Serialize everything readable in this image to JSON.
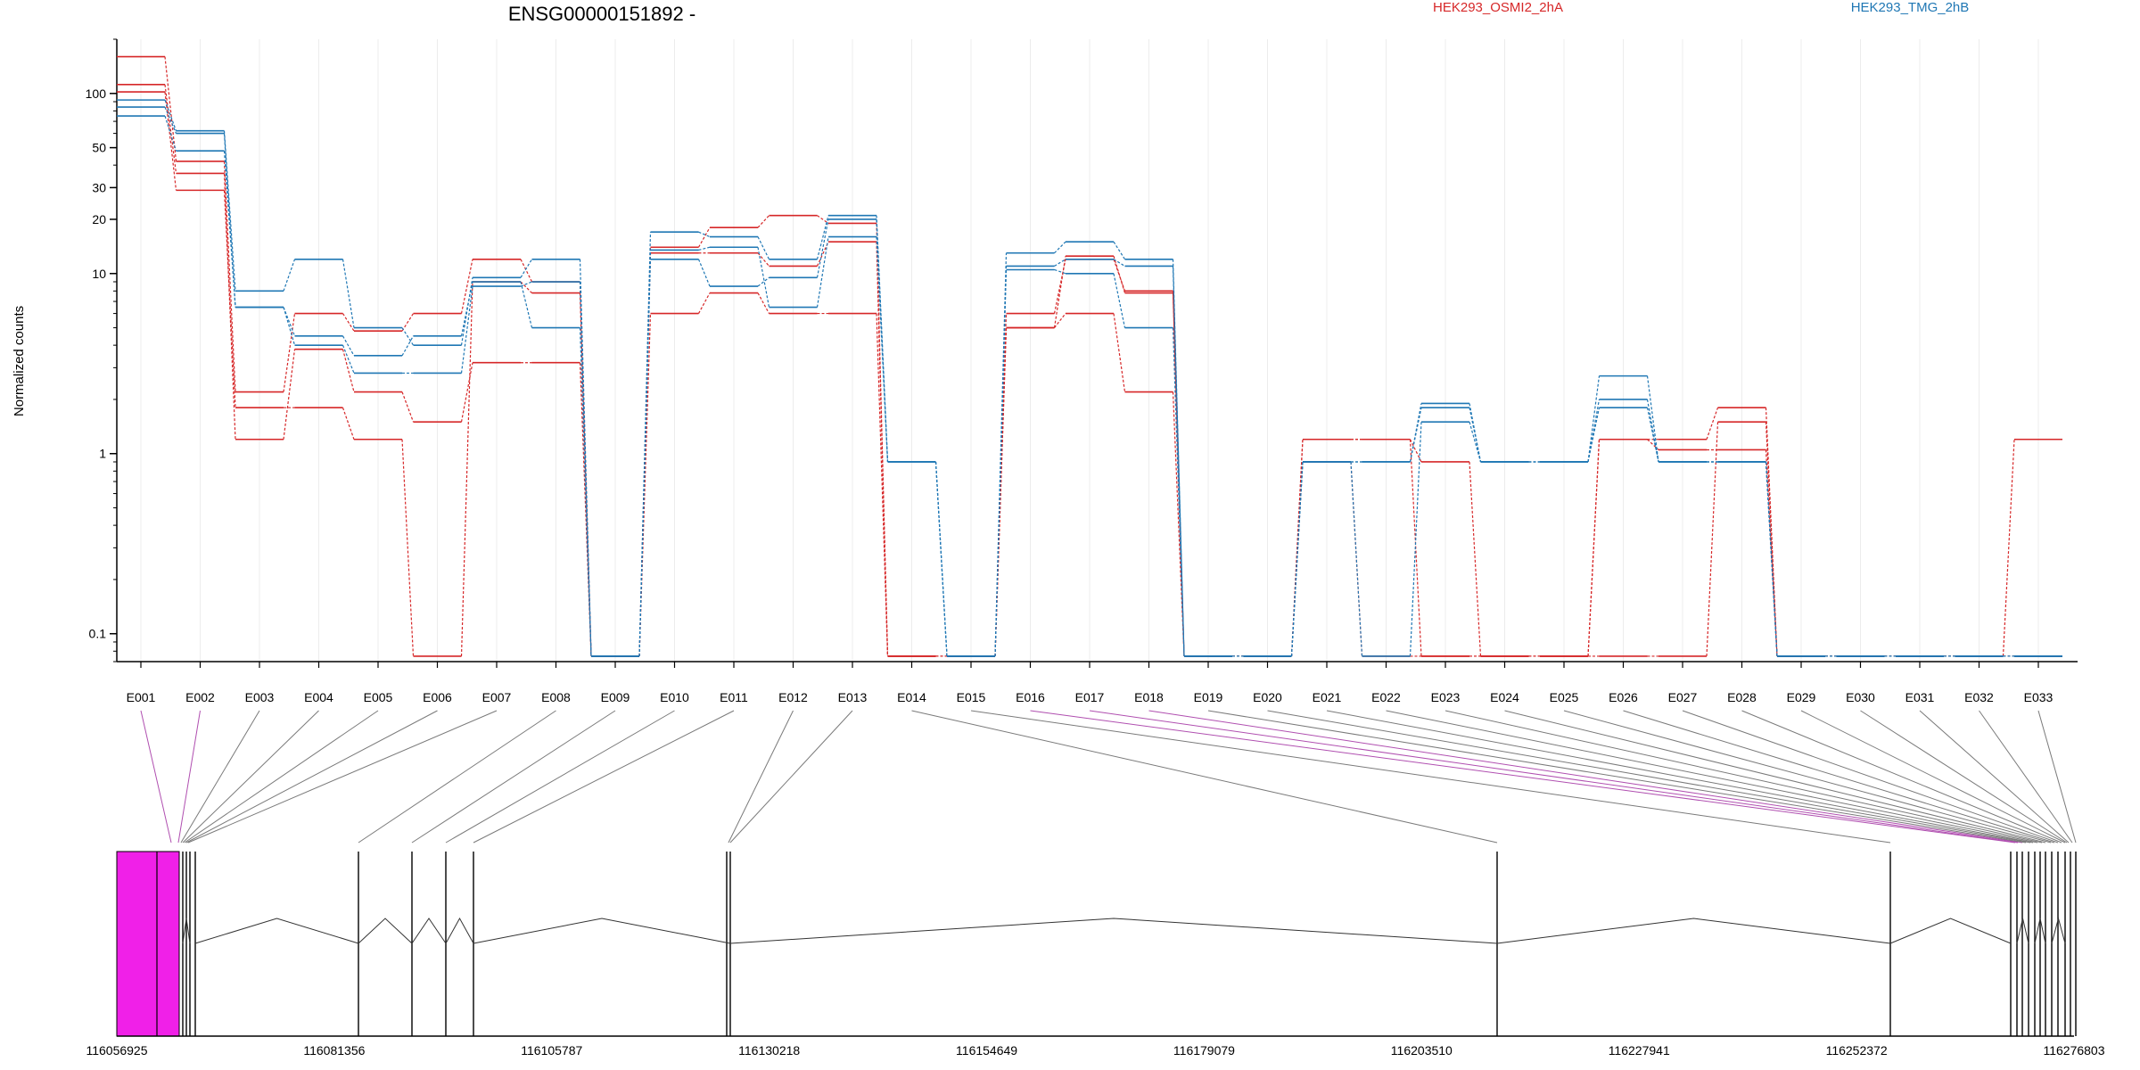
{
  "chart_data": {
    "type": "line",
    "title": "ENSG00000151892 -",
    "ylabel": "Normalized counts",
    "yscale": "log",
    "ylim": [
      0.07,
      200
    ],
    "yticks": [
      {
        "value": 100,
        "label": "100"
      },
      {
        "value": 50,
        "label": "50"
      },
      {
        "value": 30,
        "label": "30"
      },
      {
        "value": 20,
        "label": "20"
      },
      {
        "value": 10,
        "label": "10"
      },
      {
        "value": 1,
        "label": "1"
      },
      {
        "value": 0.1,
        "label": "0.1"
      }
    ],
    "legend": [
      {
        "label": "HEK293_OSMI2_2hA",
        "color": "#d62728"
      },
      {
        "label": "HEK293_TMG_2hB",
        "color": "#1f77b4"
      }
    ],
    "categories": [
      "E001",
      "E002",
      "E003",
      "E004",
      "E005",
      "E006",
      "E007",
      "E008",
      "E009",
      "E010",
      "E011",
      "E012",
      "E013",
      "E014",
      "E015",
      "E016",
      "E017",
      "E018",
      "E019",
      "E020",
      "E021",
      "E022",
      "E023",
      "E024",
      "E025",
      "E026",
      "E027",
      "E028",
      "E029",
      "E030",
      "E031",
      "E032",
      "E033"
    ],
    "series": [
      {
        "color": "#d62728",
        "values": [
          160,
          42,
          2.2,
          6,
          4.8,
          6,
          12,
          9,
          0.075,
          14,
          18,
          21,
          19,
          0.075,
          0.075,
          6,
          12,
          8,
          0.075,
          0.075,
          1.2,
          1.2,
          0.9,
          0.075,
          0.075,
          1.2,
          1.2,
          1.8,
          0.075,
          0.075,
          0.075,
          0.075,
          1.2
        ]
      },
      {
        "color": "#d62728",
        "values": [
          112,
          36,
          1.2,
          3.8,
          2.2,
          1.5,
          3.2,
          3.2,
          0.075,
          6,
          7.8,
          6,
          6,
          0.075,
          0.075,
          5,
          6,
          2.2,
          0.075,
          0.075,
          1.2,
          1.2,
          0.075,
          0.075,
          0.075,
          1.2,
          1.05,
          1.05,
          0.075,
          0.075,
          0.075,
          0.075,
          0.075
        ]
      },
      {
        "color": "#d62728",
        "values": [
          102,
          29,
          1.8,
          1.8,
          1.2,
          0.075,
          9,
          7.8,
          0.075,
          13,
          13,
          11,
          15,
          0.075,
          0.075,
          5,
          12.5,
          7.8,
          0.075,
          0.075,
          0.9,
          0.075,
          0.075,
          0.075,
          0.075,
          0.075,
          0.075,
          1.5,
          0.075,
          0.075,
          0.075,
          0.075,
          0.075
        ]
      },
      {
        "color": "#1f77b4",
        "values": [
          92,
          62,
          8,
          12,
          5,
          4,
          9.5,
          12,
          0.075,
          17,
          16,
          12,
          21,
          0.9,
          0.075,
          13,
          15,
          12,
          0.075,
          0.075,
          0.9,
          0.9,
          1.8,
          0.9,
          0.9,
          2.7,
          0.9,
          0.9,
          0.075,
          0.075,
          0.075,
          0.075,
          0.075
        ]
      },
      {
        "color": "#1f77b4",
        "values": [
          84,
          60,
          6.5,
          4.5,
          3.5,
          4.5,
          9,
          5,
          0.075,
          12,
          8.5,
          9.5,
          20,
          0.9,
          0.075,
          11,
          12,
          11,
          0.075,
          0.075,
          0.9,
          0.075,
          1.5,
          0.9,
          0.9,
          2,
          0.9,
          0.9,
          0.075,
          0.075,
          0.075,
          0.075,
          0.075
        ]
      },
      {
        "color": "#1f77b4",
        "values": [
          75,
          48,
          6.5,
          4,
          2.8,
          2.8,
          8.5,
          9,
          0.075,
          13.5,
          14,
          6.5,
          16,
          0.9,
          0.075,
          10.5,
          10,
          5,
          0.075,
          0.075,
          0.9,
          0.9,
          1.9,
          0.9,
          0.9,
          1.8,
          0.9,
          0.9,
          0.075,
          0.075,
          0.075,
          0.075,
          0.075
        ]
      }
    ],
    "gene_model": {
      "coord_ticks": [
        "116056925",
        "116081356",
        "116105787",
        "116130218",
        "116154649",
        "116179079",
        "116203510",
        "116227941",
        "116252372",
        "116276803"
      ]
    }
  }
}
